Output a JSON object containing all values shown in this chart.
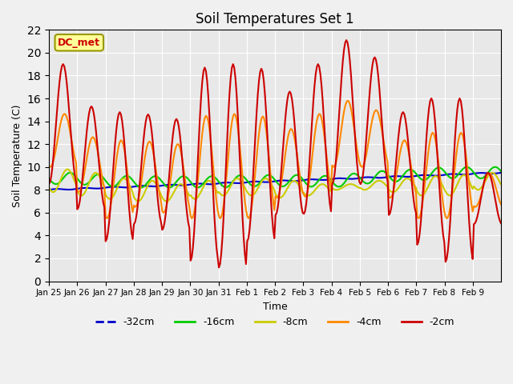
{
  "title": "Soil Temperatures Set 1",
  "xlabel": "Time",
  "ylabel": "Soil Temperature (C)",
  "annotation": "DC_met",
  "ylim": [
    0,
    22
  ],
  "yticks": [
    0,
    2,
    4,
    6,
    8,
    10,
    12,
    14,
    16,
    18,
    20,
    22
  ],
  "xtick_labels": [
    "Jan 25",
    "Jan 26",
    "Jan 27",
    "Jan 28",
    "Jan 29",
    "Jan 30",
    "Jan 31",
    "Feb 1",
    "Feb 2",
    "Feb 3",
    "Feb 4",
    "Feb 5",
    "Feb 6",
    "Feb 7",
    "Feb 8",
    "Feb 9"
  ],
  "bg_color": "#e8e8e8",
  "fig_color": "#f0f0f0",
  "series_colors": {
    "-32cm": "#0000cc",
    "-16cm": "#00cc00",
    "-8cm": "#cccc00",
    "-4cm": "#ff8800",
    "-2cm": "#cc0000"
  },
  "series_linewidths": {
    "-32cm": 1.5,
    "-16cm": 1.5,
    "-8cm": 1.5,
    "-4cm": 1.5,
    "-2cm": 1.5
  },
  "legend_labels": [
    "-32cm",
    "-16cm",
    "-8cm",
    "-4cm",
    "-2cm"
  ],
  "peak_heights_2cm": [
    19.0,
    15.3,
    14.8,
    14.6,
    14.2,
    18.7,
    19.0,
    18.6,
    16.6,
    19.0,
    21.1,
    19.6,
    14.8,
    16.0,
    16.0,
    9.5
  ],
  "trough_depths_2cm": [
    8.5,
    6.3,
    3.5,
    5.0,
    4.5,
    1.8,
    1.2,
    3.5,
    5.8,
    5.9,
    8.5,
    8.5,
    5.8,
    3.2,
    1.7,
    5.0
  ],
  "depth_8_peaks": [
    9.8,
    9.5,
    9.0,
    8.8,
    8.5,
    8.8,
    9.0,
    9.0,
    8.8,
    8.5,
    8.5,
    8.8,
    9.0,
    9.2,
    9.3,
    9.5
  ],
  "depth_8_troughs": [
    7.8,
    7.5,
    7.2,
    7.0,
    7.0,
    7.2,
    7.5,
    7.5,
    7.3,
    7.5,
    8.0,
    8.0,
    7.8,
    7.5,
    7.5,
    8.0
  ],
  "depth_16_vals": [
    9.0,
    9.0,
    8.8,
    8.7,
    8.7,
    8.7,
    8.7,
    8.8,
    8.8,
    8.8,
    8.7,
    9.0,
    9.2,
    9.3,
    9.5,
    9.5,
    9.5
  ]
}
